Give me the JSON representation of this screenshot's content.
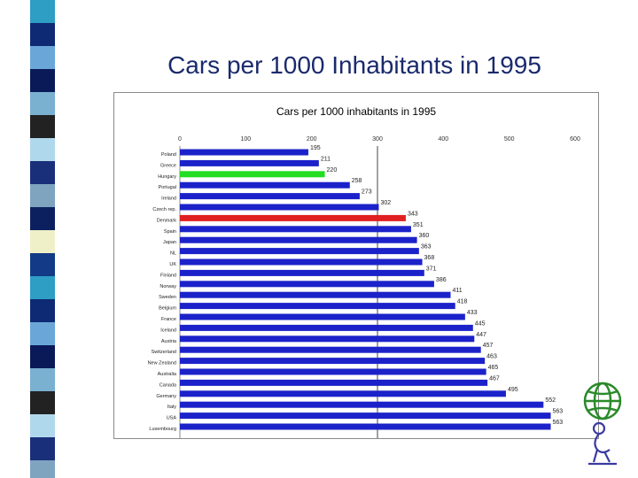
{
  "slide": {
    "title": "Cars per 1000 Inhabitants in 1995"
  },
  "colors": {
    "title": "#1a2a6c",
    "bar_default": "#1c22c9",
    "bar_highlight_green": "#22dd22",
    "bar_highlight_red": "#e02020",
    "stripe": [
      "#2e9ec4",
      "#0e2a74",
      "#6aa7d8",
      "#0a1a58",
      "#7ab0d0",
      "#222222",
      "#b0d8ec",
      "#1a2f7a",
      "#7ea4c0",
      "#0c2060",
      "#f0f0c8",
      "#123a86"
    ]
  },
  "icons": {
    "logo": "globe-with-figure-icon"
  },
  "chart_data": {
    "type": "bar",
    "orientation": "horizontal",
    "title": "Cars per 1000 inhabitants in 1995",
    "xlabel": "",
    "ylabel": "",
    "xlim": [
      0,
      600
    ],
    "xticks": [
      0,
      100,
      200,
      300,
      400,
      500,
      600
    ],
    "xtick_labels": [
      "0",
      "100",
      "200",
      "300",
      "400",
      "500",
      "600"
    ],
    "reference_line": 300,
    "grid": false,
    "categories": [
      "Poland",
      "Greece",
      "Hungary",
      "Portugal",
      "Ireland",
      "Czech rep.",
      "Denmark",
      "Spain",
      "Japan",
      "NL",
      "UK",
      "Finland",
      "Norway",
      "Sweden",
      "Belgium",
      "France",
      "Iceland",
      "Austria",
      "Switzerland",
      "New Zealand",
      "Australia",
      "Canada",
      "Germany",
      "Italy",
      "USA",
      "Luxembourg"
    ],
    "values": [
      195,
      211,
      220,
      258,
      273,
      302,
      343,
      351,
      360,
      363,
      368,
      371,
      386,
      411,
      418,
      433,
      445,
      447,
      457,
      463,
      465,
      467,
      495,
      552,
      563,
      563
    ],
    "value_labels": [
      "195",
      "211",
      "220",
      "258",
      "273",
      "302",
      "343",
      "351",
      "360",
      "363",
      "368",
      "371",
      "386",
      "411",
      "418",
      "433",
      "445",
      "447",
      "457",
      "463",
      "465",
      "467",
      "495",
      "552",
      "563",
      "563"
    ],
    "highlight": {
      "Hungary": "green",
      "Denmark": "red"
    }
  }
}
